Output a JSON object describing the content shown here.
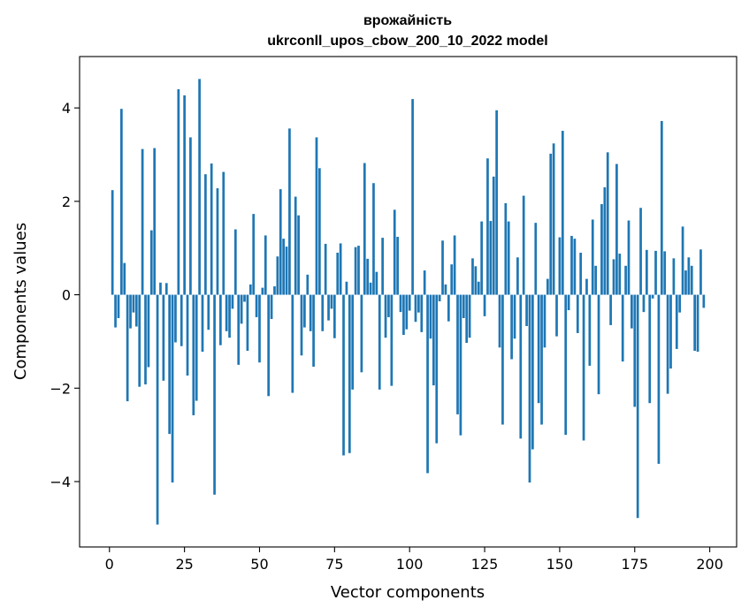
{
  "chart_data": {
    "type": "bar",
    "title_line1": "врожайність",
    "title_line2": "ukrconll_upos_cbow_200_10_2022 model",
    "xlabel": "Vector components",
    "ylabel": "Components values",
    "xlim": [
      -9.95,
      208.95
    ],
    "ylim": [
      -5.4,
      5.1
    ],
    "xticks": [
      0,
      25,
      50,
      75,
      100,
      125,
      150,
      175,
      200
    ],
    "yticks": [
      -4,
      -2,
      0,
      2,
      4
    ],
    "ytick_labels": [
      "−4",
      "−2",
      "0",
      "2",
      "4"
    ],
    "grid": false,
    "bar_color": "#1f77b4",
    "values": [
      0.0,
      2.24,
      -0.7,
      -0.5,
      3.98,
      0.68,
      -2.28,
      -0.72,
      -0.38,
      -0.68,
      -1.97,
      3.12,
      -1.92,
      -1.55,
      1.38,
      3.14,
      -4.92,
      0.26,
      -1.84,
      0.25,
      -2.98,
      -4.02,
      -1.02,
      4.4,
      -1.1,
      4.27,
      -1.73,
      3.37,
      -2.58,
      -2.27,
      4.62,
      -1.22,
      2.58,
      -0.75,
      2.81,
      -4.28,
      2.28,
      -1.08,
      2.63,
      -0.78,
      -0.92,
      -0.3,
      1.4,
      -1.5,
      -0.62,
      -0.15,
      -1.2,
      0.22,
      1.73,
      -0.48,
      -1.45,
      0.15,
      1.27,
      -2.17,
      -0.52,
      0.18,
      0.82,
      2.26,
      1.2,
      1.03,
      3.56,
      -2.1,
      2.1,
      1.7,
      -1.3,
      -0.7,
      0.43,
      -0.78,
      -1.54,
      3.37,
      2.71,
      -0.78,
      1.09,
      -0.55,
      -0.3,
      -0.93,
      0.9,
      1.1,
      -3.44,
      0.28,
      -3.39,
      -2.03,
      1.02,
      1.05,
      -1.66,
      2.82,
      0.77,
      0.26,
      2.39,
      0.49,
      -2.03,
      1.22,
      -0.92,
      -0.48,
      -1.95,
      1.82,
      1.24,
      -0.37,
      -0.86,
      -0.74,
      -0.34,
      4.19,
      -0.58,
      -0.38,
      -0.8,
      0.52,
      -3.82,
      -0.94,
      -1.94,
      -3.18,
      -0.14,
      1.16,
      0.22,
      -0.57,
      0.65,
      1.27,
      -2.56,
      -3.01,
      -0.5,
      -1.03,
      -0.92,
      0.78,
      0.61,
      0.28,
      1.57,
      -0.46,
      2.92,
      1.58,
      2.53,
      3.95,
      -1.13,
      -2.78,
      1.96,
      1.57,
      -1.38,
      -0.94,
      0.8,
      -3.08,
      2.12,
      -0.67,
      -4.02,
      -3.31,
      1.54,
      -2.32,
      -2.78,
      -1.13,
      0.34,
      3.02,
      3.24,
      -0.89,
      1.23,
      3.51,
      -3.0,
      -0.33,
      1.26,
      1.2,
      -0.82,
      0.9,
      -3.12,
      0.34,
      -1.52,
      1.61,
      0.62,
      -2.13,
      1.94,
      2.3,
      3.05,
      -0.65,
      0.76,
      2.8,
      0.88,
      -1.43,
      0.62,
      1.59,
      -0.72,
      -2.4,
      -4.78,
      1.86,
      -0.37,
      0.96,
      -2.32,
      -0.08,
      0.94,
      -3.62,
      3.72,
      0.93,
      -2.12,
      -1.58,
      0.78,
      -1.16,
      -0.38,
      1.46,
      0.52,
      0.8,
      0.62,
      -1.2,
      -1.22,
      0.97,
      -0.28
    ]
  }
}
